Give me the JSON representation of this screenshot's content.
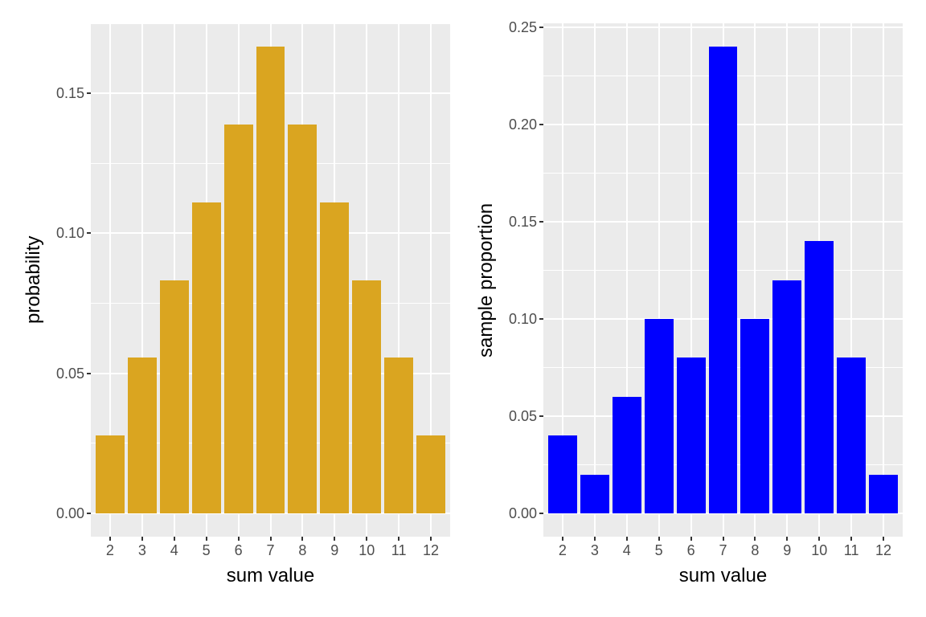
{
  "colors": {
    "figure_background": "#ffffff",
    "panel_background": "#ebebeb",
    "gridline": "#ffffff",
    "axis_text": "#4d4d4d",
    "axis_title": "#000000",
    "tick_mark": "#333333"
  },
  "chart_data": [
    {
      "type": "bar",
      "title": "",
      "xlabel": "sum value",
      "ylabel": "probability",
      "categories": [
        "2",
        "3",
        "4",
        "5",
        "6",
        "7",
        "8",
        "9",
        "10",
        "11",
        "12"
      ],
      "values": [
        0.0278,
        0.0556,
        0.0833,
        0.1111,
        0.1389,
        0.1667,
        0.1389,
        0.1111,
        0.0833,
        0.0556,
        0.0278
      ],
      "bar_color": "#daa520",
      "grid": true,
      "legend": "none",
      "y_axis": {
        "major_ticks": [
          0,
          0.05,
          0.1,
          0.15
        ],
        "tick_labels": [
          "0.00",
          "0.05",
          "0.10",
          "0.15"
        ],
        "minor_ticks": [
          0.025,
          0.075,
          0.125,
          0.175
        ],
        "ylim": [
          -0.00833,
          0.175
        ]
      }
    },
    {
      "type": "bar",
      "title": "",
      "xlabel": "sum value",
      "ylabel": "sample proportion",
      "categories": [
        "2",
        "3",
        "4",
        "5",
        "6",
        "7",
        "8",
        "9",
        "10",
        "11",
        "12"
      ],
      "values": [
        0.04,
        0.02,
        0.06,
        0.1,
        0.08,
        0.24,
        0.1,
        0.12,
        0.14,
        0.08,
        0.02
      ],
      "bar_color": "#0000ff",
      "grid": true,
      "legend": "none",
      "y_axis": {
        "major_ticks": [
          0,
          0.05,
          0.1,
          0.15,
          0.2,
          0.25
        ],
        "tick_labels": [
          "0.00",
          "0.05",
          "0.10",
          "0.15",
          "0.20",
          "0.25"
        ],
        "minor_ticks": [
          0.025,
          0.075,
          0.125,
          0.175,
          0.225
        ],
        "ylim": [
          -0.012,
          0.252
        ]
      }
    }
  ]
}
